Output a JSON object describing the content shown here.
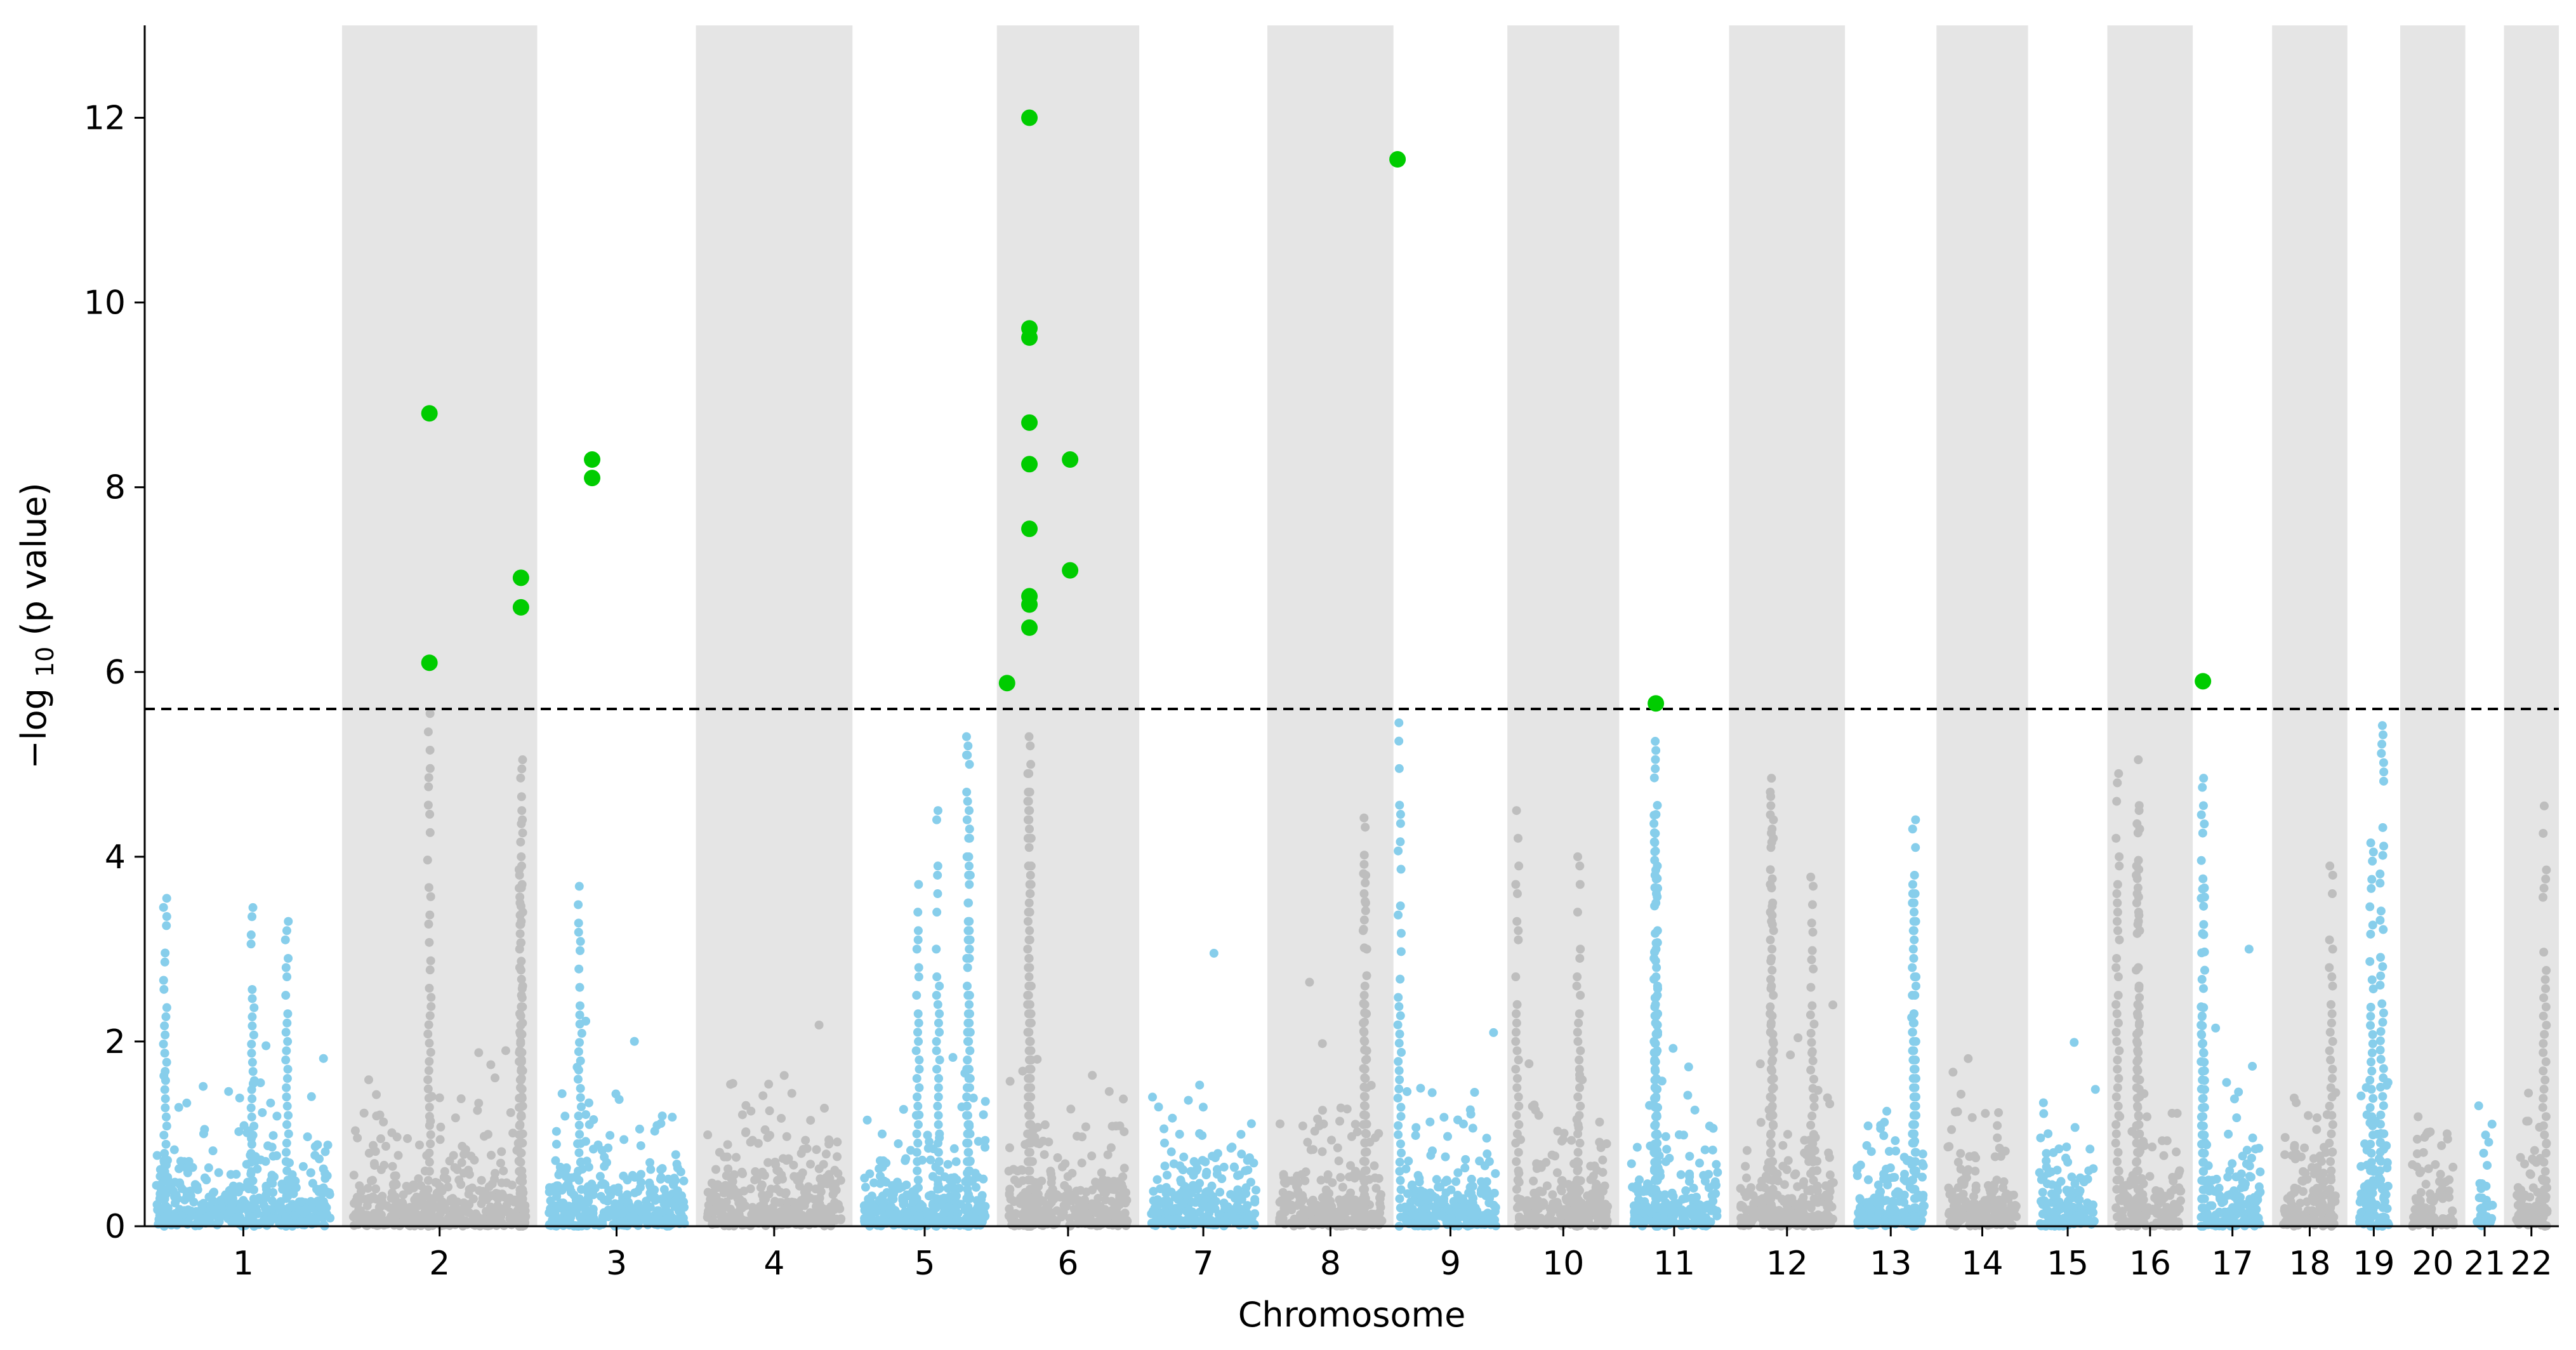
{
  "chart_data": {
    "type": "scatter",
    "subtype": "manhattan",
    "title": "",
    "xlabel": "Chromosome",
    "ylabel_prefix": "−log",
    "ylabel_sub": "10",
    "ylabel_suffix": " (p value)",
    "ylim": [
      0,
      13
    ],
    "yticks": [
      0,
      2,
      4,
      6,
      8,
      10,
      12
    ],
    "significance_threshold": 5.6,
    "colors": {
      "odd_chromosome_points": "#87ceeb",
      "even_chromosome_points": "#bebebe",
      "significant_points": "#00cc00",
      "even_band": "#e5e5e5",
      "threshold_line": "#000000"
    },
    "chromosomes": [
      {
        "label": "1",
        "x_range": [
          0.0,
          9.7
        ]
      },
      {
        "label": "2",
        "x_range": [
          9.7,
          19.3
        ]
      },
      {
        "label": "3",
        "x_range": [
          19.3,
          27.1
        ]
      },
      {
        "label": "4",
        "x_range": [
          27.1,
          34.8
        ]
      },
      {
        "label": "5",
        "x_range": [
          34.8,
          41.9
        ]
      },
      {
        "label": "6",
        "x_range": [
          41.9,
          48.9
        ]
      },
      {
        "label": "7",
        "x_range": [
          48.9,
          55.2
        ]
      },
      {
        "label": "8",
        "x_range": [
          55.2,
          61.4
        ]
      },
      {
        "label": "9",
        "x_range": [
          61.4,
          67.0
        ]
      },
      {
        "label": "10",
        "x_range": [
          67.0,
          72.5
        ]
      },
      {
        "label": "11",
        "x_range": [
          72.5,
          77.9
        ]
      },
      {
        "label": "12",
        "x_range": [
          77.9,
          83.6
        ]
      },
      {
        "label": "13",
        "x_range": [
          83.6,
          88.1
        ]
      },
      {
        "label": "14",
        "x_range": [
          88.1,
          92.6
        ]
      },
      {
        "label": "15",
        "x_range": [
          92.6,
          96.5
        ]
      },
      {
        "label": "16",
        "x_range": [
          96.5,
          100.7
        ]
      },
      {
        "label": "17",
        "x_range": [
          100.7,
          104.6
        ]
      },
      {
        "label": "18",
        "x_range": [
          104.6,
          108.3
        ]
      },
      {
        "label": "19",
        "x_range": [
          108.3,
          110.9
        ]
      },
      {
        "label": "20",
        "x_range": [
          110.9,
          114.1
        ]
      },
      {
        "label": "21",
        "x_range": [
          114.1,
          116.0
        ]
      },
      {
        "label": "22",
        "x_range": [
          116.0,
          118.7
        ]
      }
    ],
    "highlighted_points": [
      {
        "chromosome": "2",
        "x": 14.0,
        "y": 8.8
      },
      {
        "chromosome": "2",
        "x": 14.0,
        "y": 6.1
      },
      {
        "chromosome": "2",
        "x": 18.5,
        "y": 7.02
      },
      {
        "chromosome": "2",
        "x": 18.5,
        "y": 6.7
      },
      {
        "chromosome": "3",
        "x": 22.0,
        "y": 8.3
      },
      {
        "chromosome": "3",
        "x": 22.0,
        "y": 8.1
      },
      {
        "chromosome": "6",
        "x": 42.4,
        "y": 5.88
      },
      {
        "chromosome": "6",
        "x": 43.5,
        "y": 12.0
      },
      {
        "chromosome": "6",
        "x": 43.5,
        "y": 9.72
      },
      {
        "chromosome": "6",
        "x": 43.5,
        "y": 9.62
      },
      {
        "chromosome": "6",
        "x": 43.5,
        "y": 8.7
      },
      {
        "chromosome": "6",
        "x": 43.5,
        "y": 8.25
      },
      {
        "chromosome": "6",
        "x": 43.5,
        "y": 7.55
      },
      {
        "chromosome": "6",
        "x": 43.5,
        "y": 6.82
      },
      {
        "chromosome": "6",
        "x": 43.5,
        "y": 6.73
      },
      {
        "chromosome": "6",
        "x": 43.5,
        "y": 6.48
      },
      {
        "chromosome": "6",
        "x": 45.5,
        "y": 8.3
      },
      {
        "chromosome": "6",
        "x": 45.5,
        "y": 7.1
      },
      {
        "chromosome": "9",
        "x": 61.6,
        "y": 11.55
      },
      {
        "chromosome": "11",
        "x": 74.3,
        "y": 5.66
      },
      {
        "chromosome": "17",
        "x": 101.2,
        "y": 5.9
      }
    ],
    "background_peaks": [
      {
        "chromosome": "1",
        "x": 1.0,
        "y": 3.55
      },
      {
        "chromosome": "1",
        "x": 5.3,
        "y": 3.45
      },
      {
        "chromosome": "1",
        "x": 7.0,
        "y": 3.3
      },
      {
        "chromosome": "2",
        "x": 14.0,
        "y": 5.55
      },
      {
        "chromosome": "2",
        "x": 18.5,
        "y": 5.05
      },
      {
        "chromosome": "2",
        "x": 18.5,
        "y": 4.65
      },
      {
        "chromosome": "2",
        "x": 18.5,
        "y": 4.5
      },
      {
        "chromosome": "3",
        "x": 21.4,
        "y": 3.68
      },
      {
        "chromosome": "5",
        "x": 38.0,
        "y": 3.7
      },
      {
        "chromosome": "5",
        "x": 39.0,
        "y": 4.5
      },
      {
        "chromosome": "5",
        "x": 40.5,
        "y": 5.3
      },
      {
        "chromosome": "5",
        "x": 40.5,
        "y": 5.2
      },
      {
        "chromosome": "6",
        "x": 43.5,
        "y": 5.3
      },
      {
        "chromosome": "6",
        "x": 43.5,
        "y": 5.0
      },
      {
        "chromosome": "6",
        "x": 43.5,
        "y": 4.6
      },
      {
        "chromosome": "8",
        "x": 60.0,
        "y": 4.42
      },
      {
        "chromosome": "8",
        "x": 60.0,
        "y": 3.8
      },
      {
        "chromosome": "9",
        "x": 61.7,
        "y": 5.45
      },
      {
        "chromosome": "10",
        "x": 67.5,
        "y": 4.5
      },
      {
        "chromosome": "10",
        "x": 70.5,
        "y": 4.0
      },
      {
        "chromosome": "11",
        "x": 74.3,
        "y": 5.25
      },
      {
        "chromosome": "11",
        "x": 74.3,
        "y": 4.45
      },
      {
        "chromosome": "11",
        "x": 74.3,
        "y": 3.9
      },
      {
        "chromosome": "12",
        "x": 80.0,
        "y": 4.85
      },
      {
        "chromosome": "12",
        "x": 80.0,
        "y": 4.7
      },
      {
        "chromosome": "12",
        "x": 82.0,
        "y": 3.78
      },
      {
        "chromosome": "13",
        "x": 87.0,
        "y": 4.4
      },
      {
        "chromosome": "13",
        "x": 87.0,
        "y": 3.6
      },
      {
        "chromosome": "16",
        "x": 97.0,
        "y": 4.9
      },
      {
        "chromosome": "16",
        "x": 98.0,
        "y": 5.05
      },
      {
        "chromosome": "16",
        "x": 98.0,
        "y": 4.5
      },
      {
        "chromosome": "17",
        "x": 101.2,
        "y": 4.85
      },
      {
        "chromosome": "17",
        "x": 101.2,
        "y": 3.65
      },
      {
        "chromosome": "18",
        "x": 107.5,
        "y": 3.9
      },
      {
        "chromosome": "19",
        "x": 110.0,
        "y": 5.42
      },
      {
        "chromosome": "19",
        "x": 109.5,
        "y": 4.15
      },
      {
        "chromosome": "22",
        "x": 118.0,
        "y": 4.55
      }
    ]
  }
}
